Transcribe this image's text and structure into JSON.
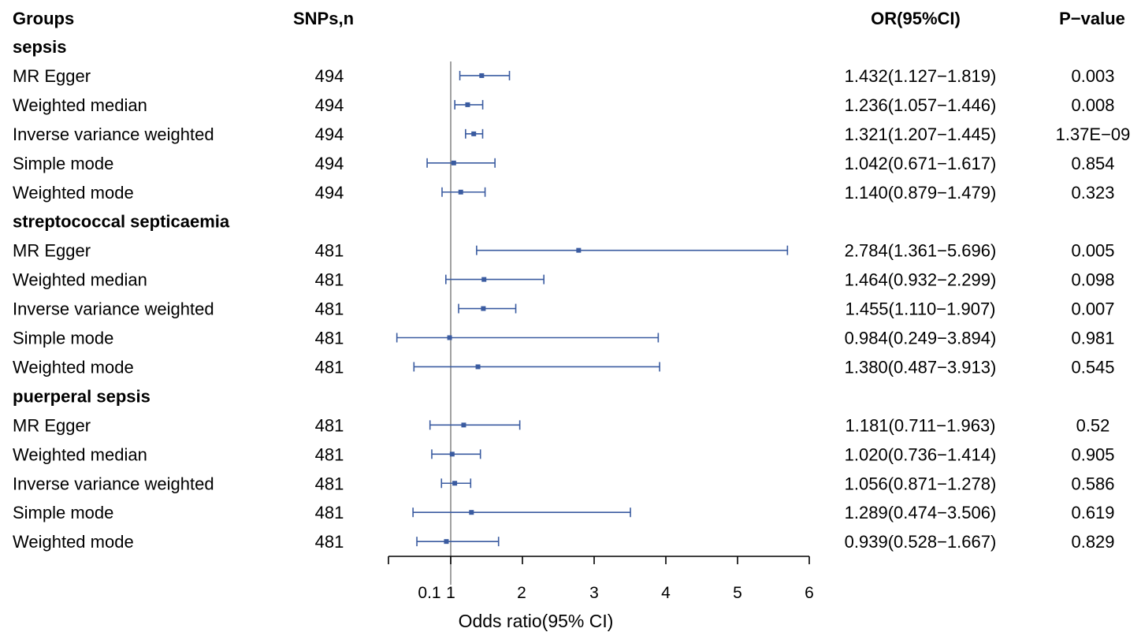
{
  "headers": {
    "groups": "Groups",
    "snps": "SNPs,n",
    "or_ci": "OR(95%CI)",
    "pvalue": "P−value"
  },
  "colors": {
    "marker": "#3a5ba0",
    "reference_line": "#8a8a8a",
    "text": "#000000"
  },
  "chart_data": {
    "type": "forest",
    "xlabel": "Odds ratio(95% CI)",
    "reference_value": 1,
    "xlim": [
      0.1,
      6
    ],
    "x_ticks": [
      0.1,
      1,
      2,
      3,
      4,
      5,
      6
    ],
    "x_tick_labels": [
      "0.1",
      "1",
      "2",
      "3",
      "4",
      "5",
      "6"
    ],
    "groups": [
      {
        "name": "sepsis",
        "rows": [
          {
            "method": "MR Egger",
            "snps": "494",
            "or": 1.432,
            "lower": 1.127,
            "upper": 1.819,
            "or_ci": "1.432(1.127−1.819)",
            "pvalue": "0.003"
          },
          {
            "method": "Weighted median",
            "snps": "494",
            "or": 1.236,
            "lower": 1.057,
            "upper": 1.446,
            "or_ci": "1.236(1.057−1.446)",
            "pvalue": "0.008"
          },
          {
            "method": "Inverse variance weighted",
            "snps": "494",
            "or": 1.321,
            "lower": 1.207,
            "upper": 1.445,
            "or_ci": "1.321(1.207−1.445)",
            "pvalue": "1.37E−09"
          },
          {
            "method": "Simple mode",
            "snps": "494",
            "or": 1.042,
            "lower": 0.671,
            "upper": 1.617,
            "or_ci": "1.042(0.671−1.617)",
            "pvalue": "0.854"
          },
          {
            "method": "Weighted mode",
            "snps": "494",
            "or": 1.14,
            "lower": 0.879,
            "upper": 1.479,
            "or_ci": "1.140(0.879−1.479)",
            "pvalue": "0.323"
          }
        ]
      },
      {
        "name": "streptococcal septicaemia",
        "rows": [
          {
            "method": "MR Egger",
            "snps": "481",
            "or": 2.784,
            "lower": 1.361,
            "upper": 5.696,
            "or_ci": "2.784(1.361−5.696)",
            "pvalue": "0.005"
          },
          {
            "method": "Weighted median",
            "snps": "481",
            "or": 1.464,
            "lower": 0.932,
            "upper": 2.299,
            "or_ci": "1.464(0.932−2.299)",
            "pvalue": "0.098"
          },
          {
            "method": "Inverse variance weighted",
            "snps": "481",
            "or": 1.455,
            "lower": 1.11,
            "upper": 1.907,
            "or_ci": "1.455(1.110−1.907)",
            "pvalue": "0.007"
          },
          {
            "method": "Simple mode",
            "snps": "481",
            "or": 0.984,
            "lower": 0.249,
            "upper": 3.894,
            "or_ci": "0.984(0.249−3.894)",
            "pvalue": "0.981"
          },
          {
            "method": "Weighted mode",
            "snps": "481",
            "or": 1.38,
            "lower": 0.487,
            "upper": 3.913,
            "or_ci": "1.380(0.487−3.913)",
            "pvalue": "0.545"
          }
        ]
      },
      {
        "name": "puerperal sepsis",
        "rows": [
          {
            "method": "MR Egger",
            "snps": "481",
            "or": 1.181,
            "lower": 0.711,
            "upper": 1.963,
            "or_ci": "1.181(0.711−1.963)",
            "pvalue": "0.52"
          },
          {
            "method": "Weighted median",
            "snps": "481",
            "or": 1.02,
            "lower": 0.736,
            "upper": 1.414,
            "or_ci": "1.020(0.736−1.414)",
            "pvalue": "0.905"
          },
          {
            "method": "Inverse variance weighted",
            "snps": "481",
            "or": 1.056,
            "lower": 0.871,
            "upper": 1.278,
            "or_ci": "1.056(0.871−1.278)",
            "pvalue": "0.586"
          },
          {
            "method": "Simple mode",
            "snps": "481",
            "or": 1.289,
            "lower": 0.474,
            "upper": 3.506,
            "or_ci": "1.289(0.474−3.506)",
            "pvalue": "0.619"
          },
          {
            "method": "Weighted mode",
            "snps": "481",
            "or": 0.939,
            "lower": 0.528,
            "upper": 1.667,
            "or_ci": "0.939(0.528−1.667)",
            "pvalue": "0.829"
          }
        ]
      }
    ]
  }
}
